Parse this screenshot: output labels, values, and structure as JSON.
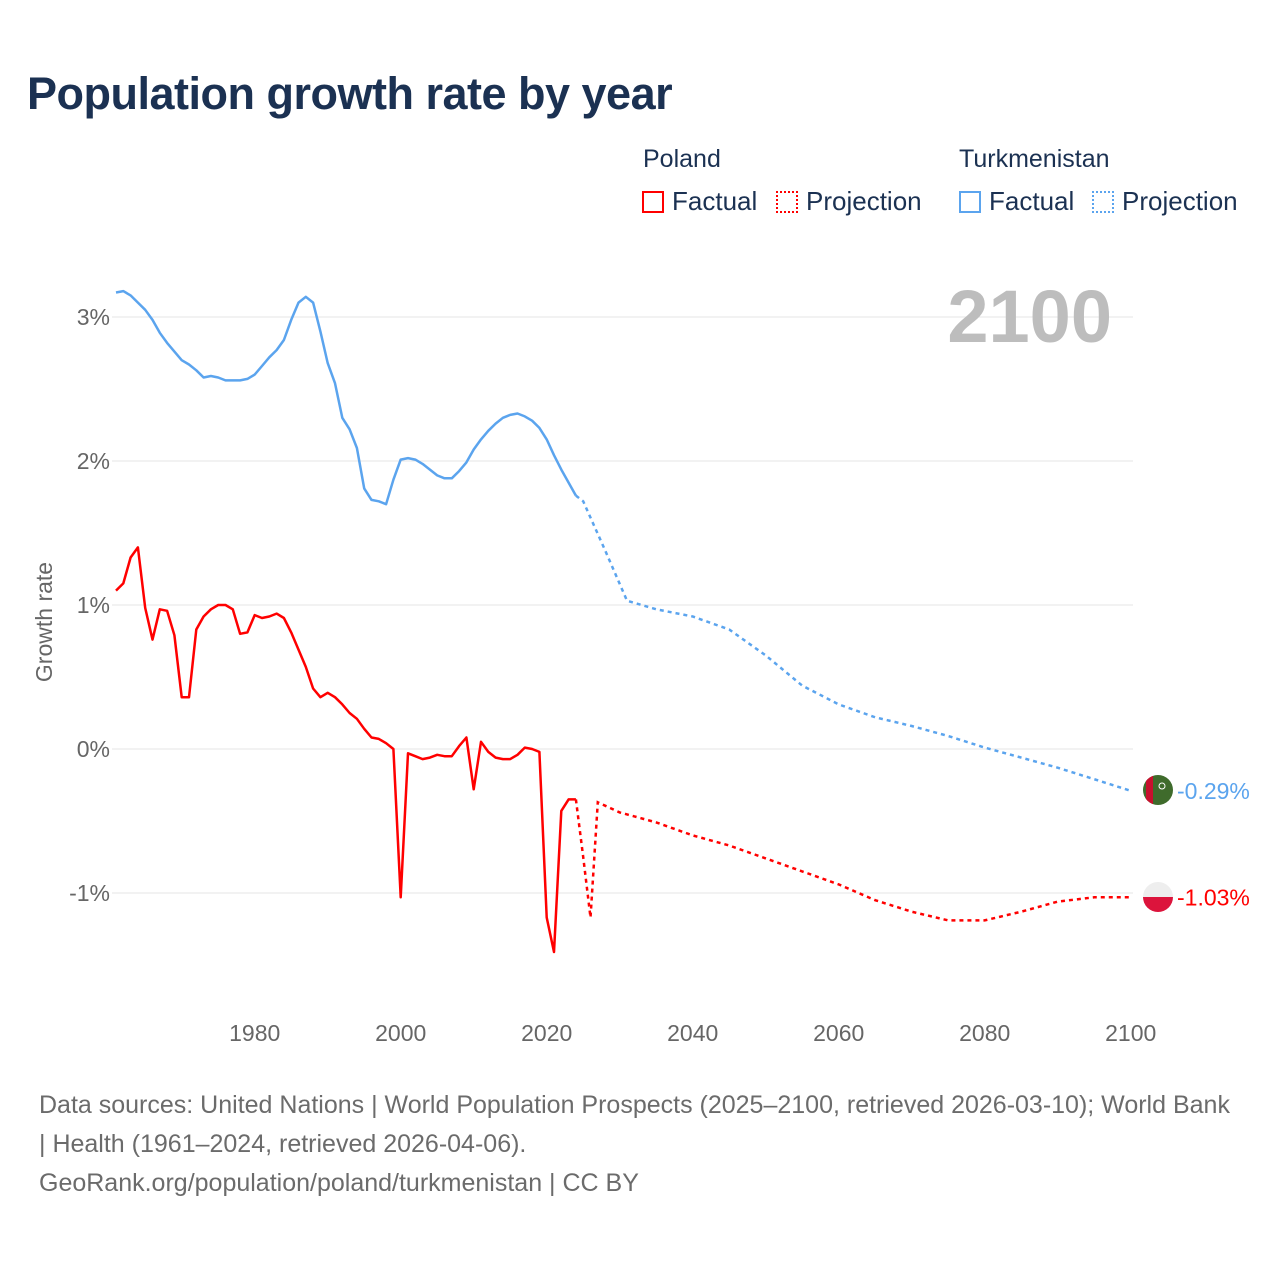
{
  "title": "Population growth rate by year",
  "legend": {
    "groups": [
      {
        "country": "Poland",
        "factual": "Factual",
        "projection": "Projection",
        "color": "#ff0000"
      },
      {
        "country": "Turkmenistan",
        "factual": "Factual",
        "projection": "Projection",
        "color": "#5ba4ee"
      }
    ]
  },
  "footer": {
    "sources": "Data sources: United Nations | World Population Prospects (2025–2100, retrieved 2026-03-10); World Bank | Health (1961–2024, retrieved 2026-04-06).",
    "credit": "GeoRank.org/population/poland/turkmenistan | CC BY"
  },
  "chart_data": {
    "type": "line",
    "title": "Population growth rate by year",
    "ylabel": "Growth rate",
    "xlabel": "",
    "xlim": [
      1961,
      2100
    ],
    "ylim": [
      -1.6,
      3.3
    ],
    "yticks": [
      3,
      2,
      1,
      0,
      -1
    ],
    "ytick_labels": [
      "3%",
      "2%",
      "1%",
      "0%",
      "-1%"
    ],
    "xticks": [
      1980,
      2000,
      2020,
      2040,
      2060,
      2080,
      2100
    ],
    "xtick_labels": [
      "1980",
      "2000",
      "2020",
      "2040",
      "2060",
      "2080",
      "2100"
    ],
    "grid": true,
    "year_label": "2100",
    "series": [
      {
        "name": "Turkmenistan",
        "color": "#5ba4ee",
        "end_label": "-0.29%",
        "flag": "turkmenistan-flag",
        "factual": {
          "x": [
            1961,
            1962,
            1963,
            1964,
            1965,
            1966,
            1967,
            1968,
            1969,
            1970,
            1971,
            1972,
            1973,
            1974,
            1975,
            1976,
            1977,
            1978,
            1979,
            1980,
            1981,
            1982,
            1983,
            1984,
            1985,
            1986,
            1987,
            1988,
            1989,
            1990,
            1991,
            1992,
            1993,
            1994,
            1995,
            1996,
            1997,
            1998,
            1999,
            2000,
            2001,
            2002,
            2003,
            2004,
            2005,
            2006,
            2007,
            2008,
            2009,
            2010,
            2011,
            2012,
            2013,
            2014,
            2015,
            2016,
            2017,
            2018,
            2019,
            2020,
            2021,
            2022,
            2023,
            2024
          ],
          "y": [
            3.17,
            3.18,
            3.15,
            3.1,
            3.05,
            2.98,
            2.89,
            2.82,
            2.76,
            2.7,
            2.67,
            2.63,
            2.58,
            2.59,
            2.58,
            2.56,
            2.56,
            2.56,
            2.57,
            2.6,
            2.66,
            2.72,
            2.77,
            2.84,
            2.98,
            3.1,
            3.14,
            3.1,
            2.9,
            2.68,
            2.54,
            2.3,
            2.22,
            2.09,
            1.81,
            1.73,
            1.72,
            1.7,
            1.87,
            2.01,
            2.02,
            2.01,
            1.98,
            1.94,
            1.9,
            1.88,
            1.88,
            1.93,
            1.99,
            2.08,
            2.15,
            2.21,
            2.26,
            2.3,
            2.32,
            2.33,
            2.31,
            2.28,
            2.23,
            2.15,
            2.04,
            1.94,
            1.85,
            1.76
          ]
        },
        "projection": {
          "x": [
            2024,
            2025,
            2028,
            2031,
            2035,
            2040,
            2045,
            2050,
            2055,
            2060,
            2065,
            2070,
            2075,
            2080,
            2085,
            2090,
            2095,
            2100
          ],
          "y": [
            1.76,
            1.72,
            1.38,
            1.03,
            0.97,
            0.92,
            0.83,
            0.65,
            0.44,
            0.31,
            0.22,
            0.16,
            0.09,
            0.01,
            -0.06,
            -0.13,
            -0.21,
            -0.29
          ]
        }
      },
      {
        "name": "Poland",
        "color": "#ff0000",
        "end_label": "-1.03%",
        "flag": "poland-flag",
        "factual": {
          "x": [
            1961,
            1962,
            1963,
            1964,
            1965,
            1966,
            1967,
            1968,
            1969,
            1970,
            1971,
            1972,
            1973,
            1974,
            1975,
            1976,
            1977,
            1978,
            1979,
            1980,
            1981,
            1982,
            1983,
            1984,
            1985,
            1986,
            1987,
            1988,
            1989,
            1990,
            1991,
            1992,
            1993,
            1994,
            1995,
            1996,
            1997,
            1998,
            1999,
            2000,
            2001,
            2002,
            2003,
            2004,
            2005,
            2006,
            2007,
            2008,
            2009,
            2010,
            2011,
            2012,
            2013,
            2014,
            2015,
            2016,
            2017,
            2018,
            2019,
            2020,
            2021,
            2022,
            2023,
            2024
          ],
          "y": [
            1.1,
            1.15,
            1.33,
            1.4,
            0.98,
            0.76,
            0.97,
            0.96,
            0.79,
            0.36,
            0.36,
            0.83,
            0.92,
            0.97,
            1.0,
            1.0,
            0.97,
            0.8,
            0.81,
            0.93,
            0.91,
            0.92,
            0.94,
            0.91,
            0.81,
            0.69,
            0.57,
            0.42,
            0.36,
            0.39,
            0.36,
            0.31,
            0.25,
            0.21,
            0.14,
            0.08,
            0.07,
            0.04,
            0.0,
            -1.03,
            -0.03,
            -0.05,
            -0.07,
            -0.06,
            -0.04,
            -0.05,
            -0.05,
            0.02,
            0.08,
            -0.28,
            0.05,
            -0.02,
            -0.06,
            -0.07,
            -0.07,
            -0.04,
            0.01,
            0.0,
            -0.02,
            -1.17,
            -1.41,
            -0.43,
            -0.35,
            -0.35
          ]
        },
        "projection": {
          "x": [
            2024,
            2025,
            2026,
            2027,
            2030,
            2035,
            2040,
            2045,
            2050,
            2055,
            2060,
            2065,
            2070,
            2075,
            2080,
            2085,
            2090,
            2095,
            2100
          ],
          "y": [
            -0.35,
            -0.75,
            -1.17,
            -0.37,
            -0.44,
            -0.51,
            -0.6,
            -0.67,
            -0.76,
            -0.85,
            -0.94,
            -1.05,
            -1.13,
            -1.19,
            -1.19,
            -1.13,
            -1.06,
            -1.03,
            -1.03
          ]
        }
      }
    ]
  }
}
